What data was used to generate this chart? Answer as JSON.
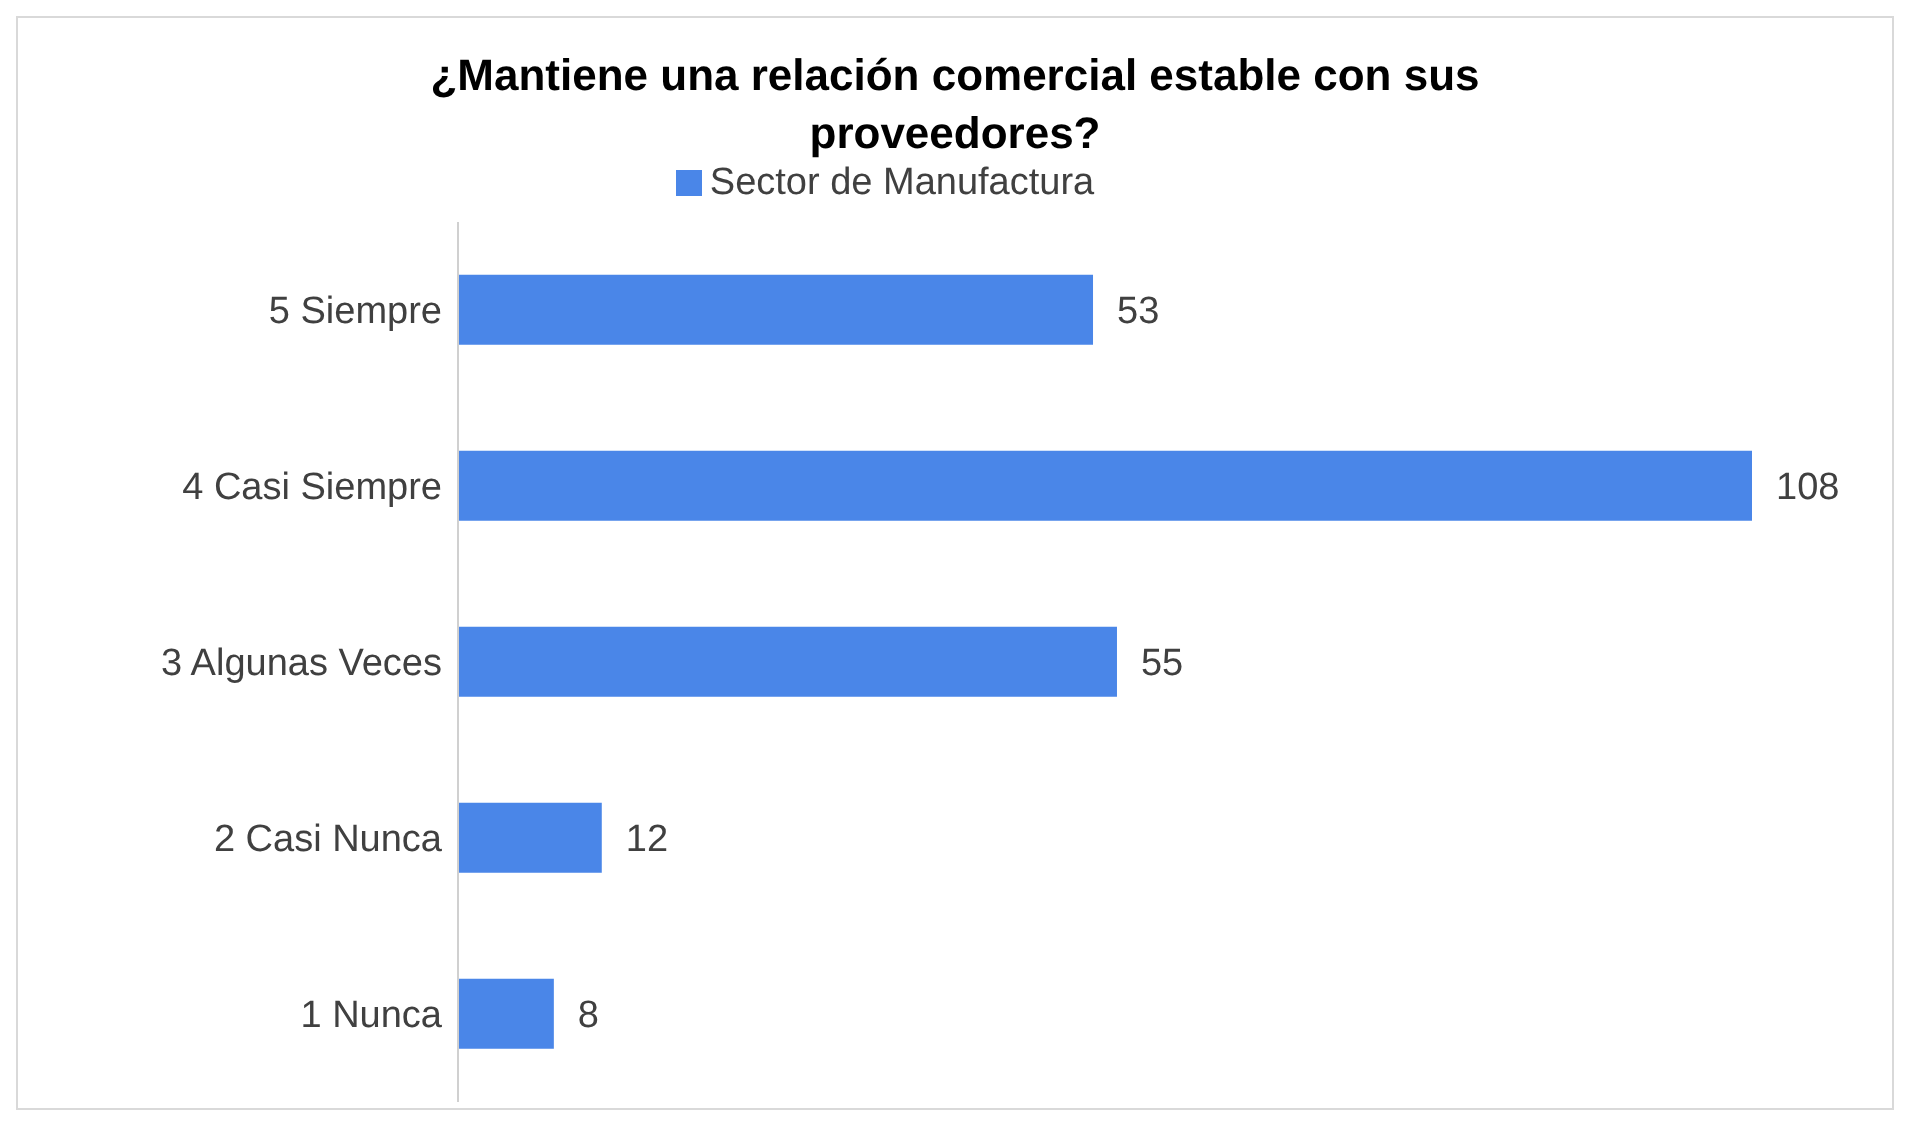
{
  "chart_data": {
    "type": "bar",
    "orientation": "horizontal",
    "title": "¿Mantiene una relación comercial estable con sus proveedores?",
    "categories": [
      "5 Siempre",
      "4 Casi Siempre",
      "3 Algunas Veces",
      "2 Casi Nunca",
      "1 Nunca"
    ],
    "series": [
      {
        "name": "Sector de Manufactura",
        "color": "#4a86e8",
        "values": [
          53,
          108,
          55,
          12,
          8
        ]
      }
    ],
    "data_labels": true,
    "legend": "top",
    "tick_labels": "y"
  }
}
